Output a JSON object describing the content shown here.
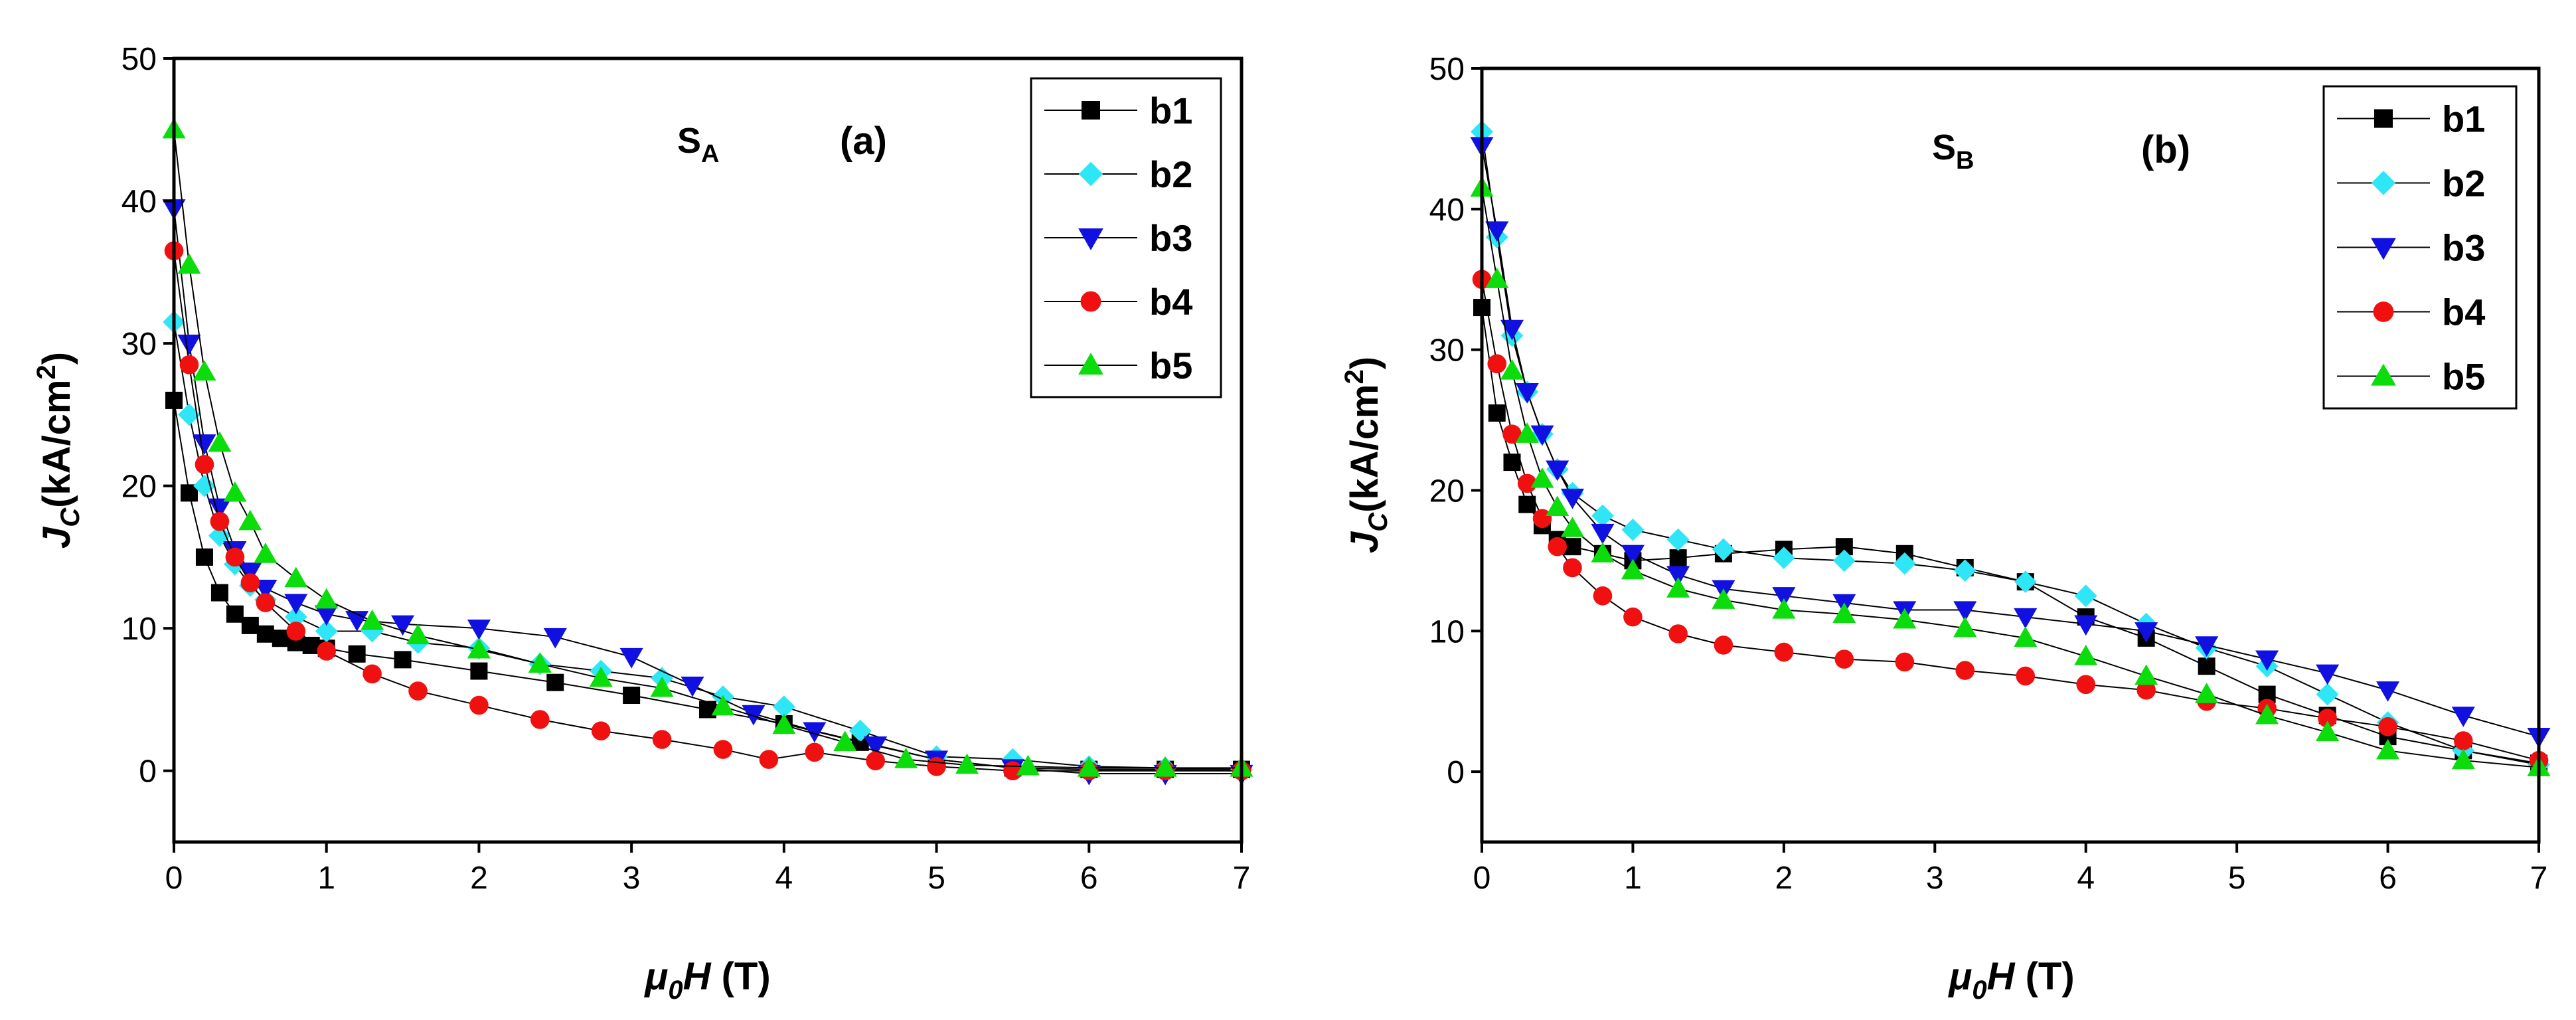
{
  "chart_data": [
    {
      "type": "line",
      "panel": "(a)",
      "sample": {
        "main": "S",
        "sub": "A"
      },
      "xlabel": {
        "mu": "μ",
        "sub": "0",
        "H": "H",
        "unit": " (T)"
      },
      "ylabel": {
        "J": "J",
        "sub": "C",
        "mid": "(kA/cm",
        "sup": "2",
        "end": ")"
      },
      "xlim": [
        0,
        7
      ],
      "ylim": [
        -5,
        50
      ],
      "xticks": [
        0,
        1,
        2,
        3,
        4,
        5,
        6,
        7
      ],
      "yticks": [
        0,
        10,
        20,
        30,
        40,
        50
      ],
      "series": [
        {
          "name": "b1",
          "marker": "square",
          "color": "#000000",
          "x": [
            0,
            0.1,
            0.2,
            0.3,
            0.4,
            0.5,
            0.6,
            0.7,
            0.8,
            0.9,
            1.0,
            1.2,
            1.5,
            2.0,
            2.5,
            3.0,
            3.5,
            4.0,
            4.5,
            5.0,
            5.5,
            6.0,
            6.5,
            7.0
          ],
          "y": [
            26,
            19.5,
            15,
            12.5,
            11,
            10.2,
            9.6,
            9.3,
            9.0,
            8.8,
            8.6,
            8.2,
            7.8,
            7.0,
            6.2,
            5.3,
            4.3,
            3.3,
            2.0,
            0.8,
            0.2,
            0.1,
            0.1,
            0.1
          ]
        },
        {
          "name": "b2",
          "marker": "diamond",
          "color": "#2ee6f5",
          "x": [
            0,
            0.1,
            0.2,
            0.3,
            0.4,
            0.5,
            0.6,
            0.8,
            1.0,
            1.3,
            1.6,
            2.0,
            2.4,
            2.8,
            3.2,
            3.6,
            4.0,
            4.5,
            5.0,
            5.5,
            6.0,
            6.5,
            7.0
          ],
          "y": [
            31.5,
            25,
            20,
            16.5,
            14.5,
            13,
            12,
            10.8,
            9.8,
            9.8,
            9.0,
            8.6,
            7.5,
            7.0,
            6.5,
            5.2,
            4.5,
            2.8,
            1.0,
            0.8,
            0.3,
            0.2,
            0.1
          ]
        },
        {
          "name": "b3",
          "marker": "triangle-down",
          "color": "#1010e0",
          "x": [
            0,
            0.1,
            0.2,
            0.3,
            0.4,
            0.5,
            0.6,
            0.8,
            1.0,
            1.2,
            1.5,
            2.0,
            2.5,
            3.0,
            3.4,
            3.8,
            4.2,
            4.6,
            5.0,
            5.5,
            6.0,
            6.5,
            7.0
          ],
          "y": [
            39.5,
            30,
            23,
            18.5,
            15.5,
            14,
            12.8,
            11.8,
            11,
            10.6,
            10.3,
            10.0,
            9.4,
            8.0,
            6.0,
            4.0,
            2.8,
            1.8,
            0.8,
            0.2,
            -0.2,
            -0.2,
            -0.2
          ]
        },
        {
          "name": "b4",
          "marker": "circle",
          "color": "#f01010",
          "x": [
            0,
            0.1,
            0.2,
            0.3,
            0.4,
            0.5,
            0.6,
            0.8,
            1.0,
            1.3,
            1.6,
            2.0,
            2.4,
            2.8,
            3.2,
            3.6,
            3.9,
            4.2,
            4.6,
            5.0,
            5.5,
            6.0,
            6.5,
            7.0
          ],
          "y": [
            36.5,
            28.5,
            21.5,
            17.5,
            15,
            13.2,
            11.8,
            9.8,
            8.4,
            6.8,
            5.6,
            4.6,
            3.6,
            2.8,
            2.2,
            1.5,
            0.8,
            1.3,
            0.7,
            0.3,
            0.0,
            0.0,
            0.0,
            0.0
          ]
        },
        {
          "name": "b5",
          "marker": "triangle-up",
          "color": "#0bdc0b",
          "x": [
            0,
            0.1,
            0.2,
            0.3,
            0.4,
            0.5,
            0.6,
            0.8,
            1.0,
            1.3,
            1.6,
            2.0,
            2.4,
            2.8,
            3.2,
            3.6,
            4.0,
            4.4,
            4.8,
            5.2,
            5.6,
            6.0,
            6.5,
            7.0
          ],
          "y": [
            45,
            35.5,
            28,
            23,
            19.5,
            17.5,
            15.2,
            13.5,
            12,
            10.5,
            9.5,
            8.5,
            7.5,
            6.5,
            5.8,
            4.5,
            3.2,
            2.0,
            0.8,
            0.4,
            0.3,
            0.2,
            0.2,
            0.2
          ]
        }
      ]
    },
    {
      "type": "line",
      "panel": "(b)",
      "sample": {
        "main": "S",
        "sub": "B"
      },
      "xlabel": {
        "mu": "μ",
        "sub": "0",
        "H": "H",
        "unit": " (T)"
      },
      "ylabel": {
        "J": "J",
        "sub": "C",
        "mid": "(kA/cm",
        "sup": "2",
        "end": ")"
      },
      "xlim": [
        0,
        7
      ],
      "ylim": [
        -5,
        50
      ],
      "xticks": [
        0,
        1,
        2,
        3,
        4,
        5,
        6,
        7
      ],
      "yticks": [
        0,
        10,
        20,
        30,
        40,
        50
      ],
      "series": [
        {
          "name": "b1",
          "marker": "square",
          "color": "#000000",
          "x": [
            0,
            0.1,
            0.2,
            0.3,
            0.4,
            0.5,
            0.6,
            0.8,
            1.0,
            1.3,
            1.6,
            2.0,
            2.4,
            2.8,
            3.2,
            3.6,
            4.0,
            4.4,
            4.8,
            5.2,
            5.6,
            6.0,
            6.5,
            7.0
          ],
          "y": [
            33,
            25.5,
            22,
            19,
            17.5,
            16.5,
            16,
            15.5,
            15,
            15.2,
            15.5,
            15.8,
            16.0,
            15.5,
            14.5,
            13.5,
            11.0,
            9.5,
            7.5,
            5.5,
            4.0,
            2.5,
            1.5,
            0.6
          ]
        },
        {
          "name": "b2",
          "marker": "diamond",
          "color": "#2ee6f5",
          "x": [
            0,
            0.1,
            0.2,
            0.3,
            0.4,
            0.5,
            0.6,
            0.8,
            1.0,
            1.3,
            1.6,
            2.0,
            2.4,
            2.8,
            3.2,
            3.6,
            4.0,
            4.4,
            4.8,
            5.2,
            5.6,
            6.0,
            6.5,
            7.0
          ],
          "y": [
            45.5,
            38,
            31,
            27,
            24,
            21.5,
            19.8,
            18.2,
            17.2,
            16.5,
            15.8,
            15.2,
            15.0,
            14.8,
            14.3,
            13.5,
            12.5,
            10.5,
            8.8,
            7.5,
            5.5,
            3.5,
            1.5,
            0.5
          ]
        },
        {
          "name": "b3",
          "marker": "triangle-down",
          "color": "#1010e0",
          "x": [
            0,
            0.1,
            0.2,
            0.3,
            0.4,
            0.5,
            0.6,
            0.8,
            1.0,
            1.3,
            1.6,
            2.0,
            2.4,
            2.8,
            3.2,
            3.6,
            4.0,
            4.4,
            4.8,
            5.2,
            5.6,
            6.0,
            6.5,
            7.0
          ],
          "y": [
            44.5,
            38.5,
            31.5,
            27,
            24,
            21.5,
            19.5,
            17.0,
            15.5,
            14.0,
            13.0,
            12.5,
            12.0,
            11.5,
            11.5,
            11.0,
            10.5,
            10.0,
            9.0,
            8.0,
            7.0,
            5.8,
            4.0,
            2.5
          ]
        },
        {
          "name": "b4",
          "marker": "circle",
          "color": "#f01010",
          "x": [
            0,
            0.1,
            0.2,
            0.3,
            0.4,
            0.5,
            0.6,
            0.8,
            1.0,
            1.3,
            1.6,
            2.0,
            2.4,
            2.8,
            3.2,
            3.6,
            4.0,
            4.4,
            4.8,
            5.2,
            5.6,
            6.0,
            6.5,
            7.0
          ],
          "y": [
            35,
            29,
            24,
            20.5,
            18,
            16,
            14.5,
            12.5,
            11.0,
            9.8,
            9.0,
            8.5,
            8.0,
            7.8,
            7.2,
            6.8,
            6.2,
            5.8,
            5.0,
            4.5,
            3.8,
            3.2,
            2.2,
            0.8
          ]
        },
        {
          "name": "b5",
          "marker": "triangle-up",
          "color": "#0bdc0b",
          "x": [
            0,
            0.1,
            0.2,
            0.3,
            0.4,
            0.5,
            0.6,
            0.8,
            1.0,
            1.3,
            1.6,
            2.0,
            2.4,
            2.8,
            3.2,
            3.6,
            4.0,
            4.4,
            4.8,
            5.2,
            5.6,
            6.0,
            6.5,
            7.0
          ],
          "y": [
            41.5,
            35,
            28.5,
            24,
            20.8,
            18.8,
            17.3,
            15.5,
            14.3,
            13.0,
            12.2,
            11.5,
            11.2,
            10.8,
            10.2,
            9.5,
            8.2,
            6.8,
            5.5,
            4.0,
            2.8,
            1.5,
            0.8,
            0.3
          ]
        }
      ]
    }
  ]
}
